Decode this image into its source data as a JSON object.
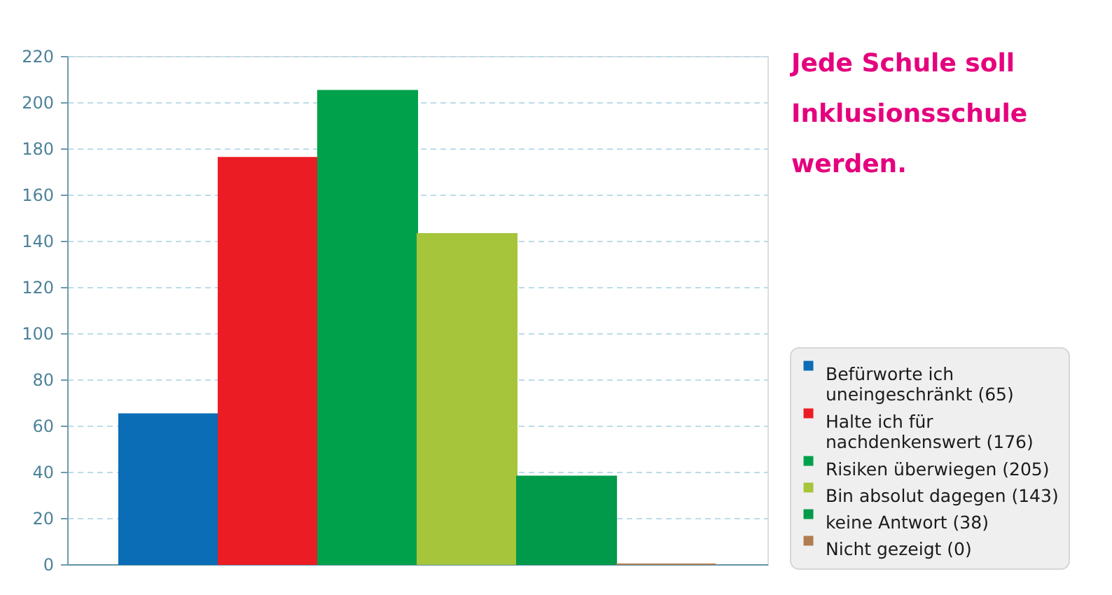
{
  "chart_data": {
    "type": "bar",
    "title": "Jede Schule soll Inklusionsschule werden.",
    "categories": [
      null,
      null,
      null,
      null,
      null,
      null
    ],
    "series": [
      {
        "name": "Befürworte ich uneingeschränkt (65)",
        "color": "#0a6db5",
        "values": [
          65,
          null,
          null,
          null,
          null,
          null
        ]
      },
      {
        "name": "Halte ich für nachdenkenswert (176)",
        "color": "#ec1c24",
        "values": [
          null,
          176,
          null,
          null,
          null,
          null
        ]
      },
      {
        "name": "Risiken überwiegen (205)",
        "color": "#00a14b",
        "values": [
          null,
          null,
          205,
          null,
          null,
          null
        ]
      },
      {
        "name": "Bin absolut dagegen (143)",
        "color": "#a6c53b",
        "values": [
          null,
          null,
          null,
          143,
          null,
          null
        ]
      },
      {
        "name": "keine Antwort (38)",
        "color": "#009a4a",
        "values": [
          null,
          null,
          null,
          null,
          38,
          null
        ]
      },
      {
        "name": "Nicht gezeigt (0)",
        "color": "#b07c50",
        "values": [
          null,
          null,
          null,
          null,
          null,
          0
        ]
      }
    ],
    "ylim": [
      0,
      220
    ],
    "yticks": [
      0,
      20,
      40,
      60,
      80,
      100,
      120,
      140,
      160,
      180,
      200,
      220
    ],
    "grid": "y",
    "legend": "bottom right",
    "tick_labels": "y"
  }
}
